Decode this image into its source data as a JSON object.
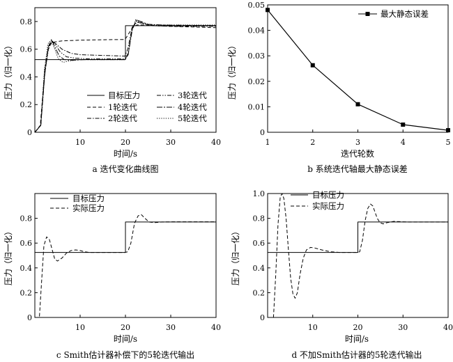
{
  "chart_data": [
    {
      "id": "a",
      "type": "line",
      "caption": "a 迭代变化曲线图",
      "xlabel": "时间/s",
      "ylabel": "压力（归一化）",
      "xlim": [
        0,
        40
      ],
      "ylim": [
        0,
        0.9
      ],
      "xticks": [
        10,
        20,
        30,
        40
      ],
      "yticks": [
        0,
        0.2,
        0.4,
        0.6,
        0.8
      ],
      "ytick_labels": [
        "0",
        "0.2",
        "0.4",
        "0.6",
        "0.8"
      ],
      "legend_position": "bottom-right",
      "series": [
        {
          "name": "目标压力",
          "style": "solid",
          "x": [
            0,
            20,
            20,
            40
          ],
          "y": [
            0.525,
            0.525,
            0.77,
            0.77
          ]
        },
        {
          "name": "1轮迭代",
          "style": "dashed",
          "x": [
            0,
            1.2,
            2.2,
            3.0,
            4.0,
            6.0,
            10,
            15,
            19.9,
            20.5,
            21.5,
            22.5,
            24,
            26,
            30,
            35,
            40
          ],
          "y": [
            0,
            0.05,
            0.45,
            0.62,
            0.65,
            0.66,
            0.665,
            0.668,
            0.67,
            0.7,
            0.755,
            0.775,
            0.775,
            0.77,
            0.765,
            0.76,
            0.755
          ]
        },
        {
          "name": "2轮迭代",
          "style": "dashdot",
          "x": [
            0,
            1.3,
            2.2,
            3.0,
            3.8,
            4.6,
            6.0,
            8.0,
            10,
            15,
            19.9,
            20.5,
            21.5,
            22.5,
            24,
            26,
            30,
            40
          ],
          "y": [
            0,
            0.05,
            0.45,
            0.62,
            0.655,
            0.64,
            0.6,
            0.57,
            0.56,
            0.555,
            0.55,
            0.6,
            0.76,
            0.795,
            0.785,
            0.77,
            0.765,
            0.765
          ]
        },
        {
          "name": "3轮迭代",
          "style": "dashdotdot",
          "x": [
            0,
            1.3,
            2.2,
            3.0,
            3.8,
            4.6,
            5.6,
            7.0,
            9.0,
            12,
            19.9,
            20.6,
            21.5,
            22.5,
            23.5,
            25,
            28,
            40
          ],
          "y": [
            0,
            0.05,
            0.43,
            0.6,
            0.66,
            0.63,
            0.58,
            0.545,
            0.535,
            0.53,
            0.53,
            0.57,
            0.75,
            0.805,
            0.79,
            0.775,
            0.77,
            0.77
          ]
        },
        {
          "name": "4轮迭代",
          "style": "longdash",
          "x": [
            0,
            1.3,
            2.2,
            3.0,
            3.7,
            4.5,
            5.4,
            6.5,
            8.0,
            11,
            19.9,
            20.6,
            21.5,
            22.4,
            23.4,
            25,
            28,
            40
          ],
          "y": [
            0,
            0.05,
            0.42,
            0.62,
            0.67,
            0.61,
            0.55,
            0.525,
            0.52,
            0.525,
            0.525,
            0.56,
            0.74,
            0.81,
            0.8,
            0.78,
            0.775,
            0.77
          ]
        },
        {
          "name": "5轮迭代",
          "style": "dotted",
          "x": [
            0,
            1.3,
            2.1,
            2.9,
            3.6,
            4.4,
            5.2,
            6.2,
            7.5,
            10,
            19.9,
            20.6,
            21.4,
            22.3,
            23.2,
            24.5,
            27,
            40
          ],
          "y": [
            0,
            0.05,
            0.45,
            0.64,
            0.665,
            0.6,
            0.53,
            0.505,
            0.515,
            0.525,
            0.525,
            0.56,
            0.73,
            0.815,
            0.8,
            0.78,
            0.775,
            0.775
          ]
        }
      ]
    },
    {
      "id": "b",
      "type": "line",
      "caption": "b 系统迭代轴最大静态误差",
      "xlabel": "迭代轮数",
      "ylabel": "压力（归一化）",
      "xlim": [
        1,
        5
      ],
      "ylim": [
        0,
        0.05
      ],
      "xticks": [
        1,
        2,
        3,
        4,
        5
      ],
      "yticks": [
        0,
        0.01,
        0.02,
        0.03,
        0.04,
        0.05
      ],
      "ytick_labels": [
        "0",
        "0.01",
        "0.02",
        "0.03",
        "0.04",
        "0.05"
      ],
      "legend_position": "top-right",
      "markers": "square",
      "series": [
        {
          "name": "最大静态误差",
          "style": "solid",
          "x": [
            1,
            2,
            3,
            4,
            5
          ],
          "y": [
            0.048,
            0.0263,
            0.011,
            0.003,
            0.0008
          ]
        }
      ]
    },
    {
      "id": "c",
      "type": "line",
      "caption": "c Smith估计器补偿下的5轮迭代输出",
      "xlabel": "时间/s",
      "ylabel": "压力（归一化）",
      "xlim": [
        0,
        40
      ],
      "ylim": [
        0,
        1.0
      ],
      "xticks": [
        10,
        20,
        30,
        40
      ],
      "yticks": [
        0,
        0.2,
        0.4,
        0.6,
        0.8
      ],
      "ytick_labels": [
        "0",
        "0.2",
        "0.4",
        "0.6",
        "0.8"
      ],
      "legend_position": "top-left",
      "series": [
        {
          "name": "目标压力",
          "style": "solid",
          "x": [
            0,
            20,
            20,
            40
          ],
          "y": [
            0.525,
            0.525,
            0.77,
            0.77
          ]
        },
        {
          "name": "实际压力",
          "style": "dashed",
          "x": [
            0,
            1.0,
            1.5,
            2.0,
            2.6,
            3.2,
            3.8,
            4.4,
            5.0,
            6.0,
            7.0,
            8.0,
            9.0,
            10.0,
            11,
            12,
            14,
            17,
            19.9,
            20.5,
            21.2,
            22.0,
            22.8,
            23.5,
            24.3,
            25.2,
            26.5,
            28,
            31,
            40
          ],
          "y": [
            0,
            0.0,
            0.3,
            0.58,
            0.65,
            0.63,
            0.55,
            0.47,
            0.455,
            0.48,
            0.52,
            0.54,
            0.545,
            0.54,
            0.53,
            0.525,
            0.525,
            0.525,
            0.525,
            0.53,
            0.6,
            0.76,
            0.82,
            0.83,
            0.8,
            0.77,
            0.765,
            0.77,
            0.772,
            0.772
          ]
        }
      ]
    },
    {
      "id": "d",
      "type": "line",
      "caption": "d 不加Smith估计器的5轮迭代输出",
      "xlabel": "时间/s",
      "ylabel": "压力（归一化）",
      "xlim": [
        0,
        40
      ],
      "ylim": [
        0,
        1.0
      ],
      "xticks": [
        10,
        20,
        30,
        40
      ],
      "yticks": [
        0,
        0.2,
        0.4,
        0.6,
        0.8,
        1.0
      ],
      "ytick_labels": [
        "0",
        "0.2",
        "0.4",
        "0.6",
        "0.8",
        "1.0"
      ],
      "legend_position": "top-left",
      "series": [
        {
          "name": "目标压力",
          "style": "solid",
          "x": [
            0,
            20,
            20,
            40
          ],
          "y": [
            0.525,
            0.525,
            0.77,
            0.77
          ]
        },
        {
          "name": "实际压力",
          "style": "dashed",
          "x": [
            0,
            1.3,
            1.8,
            2.3,
            2.8,
            3.2,
            3.6,
            4.1,
            4.6,
            5.1,
            5.6,
            6.1,
            6.6,
            7.2,
            7.9,
            8.6,
            9.5,
            10.5,
            12,
            14,
            16,
            19.9,
            20.4,
            21.0,
            21.6,
            22.2,
            22.8,
            23.3,
            23.8,
            24.3,
            24.9,
            25.6,
            26.5,
            28,
            31,
            40
          ],
          "y": [
            0,
            0,
            0.35,
            0.75,
            0.97,
            1.0,
            0.96,
            0.8,
            0.55,
            0.32,
            0.19,
            0.155,
            0.2,
            0.35,
            0.48,
            0.545,
            0.565,
            0.56,
            0.545,
            0.53,
            0.525,
            0.525,
            0.53,
            0.62,
            0.78,
            0.88,
            0.915,
            0.9,
            0.85,
            0.8,
            0.765,
            0.755,
            0.765,
            0.775,
            0.77,
            0.77
          ]
        }
      ]
    }
  ]
}
